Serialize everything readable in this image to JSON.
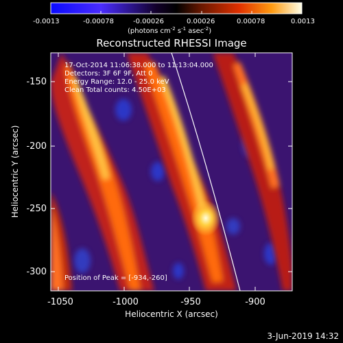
{
  "colorbar": {
    "ticks": [
      "-0.0013",
      "-0.00078",
      "-0.00026",
      "0.00026",
      "0.00078",
      "0.0013"
    ],
    "units": "(photons cm",
    "units_sup1": "-2",
    "units_mid": " s",
    "units_sup2": "-1",
    "units_end": " asec",
    "units_sup3": "-2",
    "units_close": ")",
    "colors": {
      "min": "#1515ff",
      "mid_low": "#000000",
      "mid": "#7a2a00",
      "high": "#ff7a00",
      "max": "#fffff0"
    }
  },
  "plot": {
    "title": "Reconstructed RHESSI Image",
    "info_lines": [
      "17-Oct-2014 11:06:38.000 to 11:13:04.000",
      "Detectors: 3F 6F 9F, Att 0",
      "Energy Range: 12.0 - 25.0 keV",
      "Clean    Total counts: 4.50E+03"
    ],
    "peak_label": "Position of Peak = [-934,-260]",
    "xlabel": "Heliocentric X (arcsec)",
    "ylabel": "Heliocentric Y (arcsec)",
    "xticks": [
      "-1050",
      "-1000",
      "-950",
      "-900"
    ],
    "yticks": [
      "-150",
      "-200",
      "-250",
      "-300"
    ]
  },
  "footer": {
    "date": "3-Jun-2019 14:32"
  }
}
